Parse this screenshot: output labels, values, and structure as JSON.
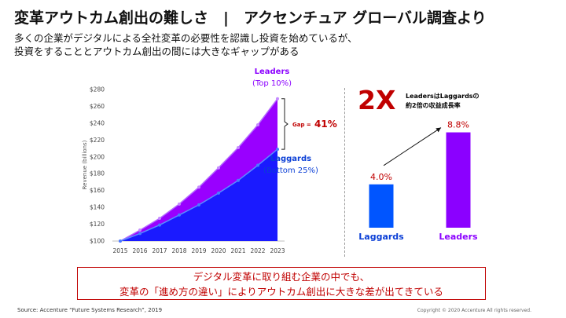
{
  "header": {
    "title": "変革アウトカム創出の難しさ　|　アクセンチュア グローバル調査より",
    "subtitle_line1": "多くの企業がデジタルによる全社変革の必要性を認識し投資を始めているが、",
    "subtitle_line2": "投資をすることとアウトカム創出の間には大きなギャップがある"
  },
  "colors": {
    "leaders": "#8b00ff",
    "laggards": "#0055ff",
    "gap_red": "#c00000",
    "fill_purple": "#9900ff",
    "fill_blue": "#1a1aff"
  },
  "chart_data": [
    {
      "type": "area",
      "title": "",
      "xlabel": "",
      "ylabel": "Revenue (billions)",
      "x": [
        2015,
        2016,
        2017,
        2018,
        2019,
        2020,
        2021,
        2022,
        2023
      ],
      "ylim": [
        100,
        280
      ],
      "yticks": [
        "$100",
        "$120",
        "$140",
        "$160",
        "$180",
        "$200",
        "$220",
        "$240",
        "$260",
        "$280"
      ],
      "ytick_values": [
        100,
        120,
        140,
        160,
        180,
        200,
        220,
        240,
        260,
        280
      ],
      "series": [
        {
          "name": "Leaders",
          "sublabel": "(Top 10%)",
          "values": [
            100,
            113,
            127,
            144,
            164,
            187,
            211,
            238,
            269
          ]
        },
        {
          "name": "Laggards",
          "sublabel": "(Bottom 25%)",
          "values": [
            100,
            109,
            119,
            131,
            143,
            157,
            172,
            190,
            209
          ]
        }
      ],
      "annotation": {
        "prefix": "Gap = ",
        "value": "41%"
      },
      "grid": false
    },
    {
      "type": "bar",
      "categories": [
        "Laggards",
        "Leaders"
      ],
      "values": [
        4.0,
        8.8
      ],
      "value_labels": [
        "4.0%",
        "8.8%"
      ],
      "ylim": [
        0,
        10
      ],
      "headline": "2X",
      "headline_note_line1": "LeadersはLaggardsの",
      "headline_note_line2": "約2倍の収益成長率"
    }
  ],
  "note": {
    "line1": "デジタル変革に取り組む企業の中でも、",
    "line2": "変革の「進め方の違い」によりアウトカム創出に大きな差が出てきている"
  },
  "footer": {
    "source": "Source:  Accenture “Future Systems Research”, 2019",
    "copyright": "Copyright © 2020 Accenture  All rights reserved."
  }
}
